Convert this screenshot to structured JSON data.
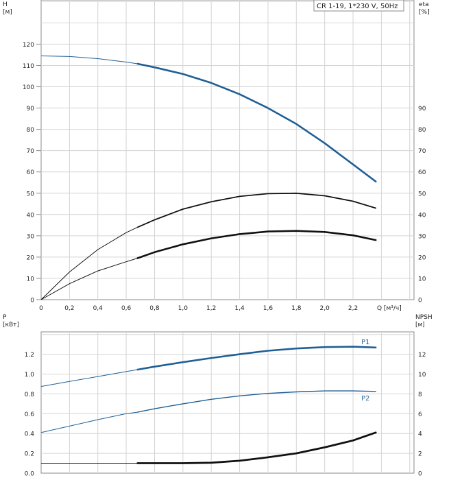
{
  "colors": {
    "blue": "#1f5f96",
    "black": "#111111",
    "grid": "#d4d4d4",
    "frame": "#8a8a8a"
  },
  "chart_data": [
    {
      "type": "line",
      "legend": "CR 1-19, 1*230 V, 50Hz",
      "legend_placement": "top-right",
      "xlabel": "Q [м³/ч]",
      "ylabel_left": "H\n[м]",
      "ylabel_right": "eta\n[%]",
      "xlim": [
        0,
        2.4
      ],
      "ylim_left": [
        0,
        130
      ],
      "ylim_right": [
        0,
        130
      ],
      "grid": true,
      "x_ticks": [
        "0",
        "0,2",
        "0,4",
        "0,6",
        "0,8",
        "1,0",
        "1,2",
        "1,4",
        "1,6",
        "1,8",
        "2,0",
        "2,2"
      ],
      "y_ticks_left": [
        "0",
        "10",
        "20",
        "30",
        "40",
        "50",
        "60",
        "70",
        "80",
        "90",
        "100",
        "110",
        "120"
      ],
      "y_ticks_right": [
        "0",
        "10",
        "20",
        "30",
        "40",
        "50",
        "60",
        "70",
        "80",
        "90"
      ],
      "operating_range": [
        0.68,
        2.36
      ],
      "series": [
        {
          "color": "blue",
          "x": [
            0,
            0.2,
            0.4,
            0.6,
            0.68,
            0.8,
            1.0,
            1.2,
            1.4,
            1.6,
            1.8,
            2.0,
            2.2,
            2.36
          ],
          "y": [
            114.5,
            114.2,
            113.2,
            111.6,
            110.8,
            109.1,
            106.0,
            101.8,
            96.5,
            90.0,
            82.5,
            73.5,
            63.5,
            55.5
          ]
        },
        {
          "color": "black",
          "x": [
            0,
            0.2,
            0.4,
            0.6,
            0.68,
            0.8,
            1.0,
            1.2,
            1.4,
            1.6,
            1.8,
            2.0,
            2.2,
            2.36
          ],
          "y": [
            0,
            13.0,
            23.5,
            31.5,
            34.0,
            37.5,
            42.5,
            46.0,
            48.5,
            49.8,
            50.0,
            48.8,
            46.2,
            43.0
          ]
        },
        {
          "color": "black",
          "x": [
            0,
            0.2,
            0.4,
            0.6,
            0.68,
            0.8,
            1.0,
            1.2,
            1.4,
            1.6,
            1.8,
            2.0,
            2.2,
            2.36
          ],
          "y": [
            0,
            7.5,
            13.5,
            17.8,
            19.5,
            22.3,
            26.0,
            28.8,
            30.8,
            32.0,
            32.3,
            31.8,
            30.2,
            28.0
          ]
        }
      ]
    },
    {
      "type": "line",
      "ylabel_left": "P\n[кВт]",
      "ylabel_right": "NPSH\n[м]",
      "xlim": [
        0,
        2.4
      ],
      "ylim_left": [
        0,
        1.4
      ],
      "ylim_right": [
        0,
        14
      ],
      "grid": true,
      "y_ticks_left": [
        "0.0",
        "0.2",
        "0.4",
        "0.6",
        "0.8",
        "1.0",
        "1.2"
      ],
      "y_ticks_right": [
        "0",
        "2",
        "4",
        "6",
        "8",
        "10",
        "12"
      ],
      "operating_range": [
        0.68,
        2.36
      ],
      "series": [
        {
          "name": "P1",
          "color": "blue",
          "axis": "left",
          "x": [
            0,
            0.2,
            0.4,
            0.6,
            0.68,
            0.8,
            1.0,
            1.2,
            1.4,
            1.6,
            1.8,
            2.0,
            2.2,
            2.36
          ],
          "y": [
            0.875,
            0.925,
            0.975,
            1.025,
            1.045,
            1.075,
            1.12,
            1.162,
            1.2,
            1.235,
            1.258,
            1.272,
            1.276,
            1.268
          ]
        },
        {
          "name": "P2",
          "color": "blue",
          "axis": "left",
          "x": [
            0,
            0.2,
            0.4,
            0.6,
            0.68,
            0.8,
            1.0,
            1.2,
            1.4,
            1.6,
            1.8,
            2.0,
            2.2,
            2.36
          ],
          "y": [
            0.41,
            0.475,
            0.54,
            0.6,
            0.615,
            0.65,
            0.7,
            0.745,
            0.78,
            0.805,
            0.82,
            0.83,
            0.83,
            0.825
          ]
        },
        {
          "color": "black",
          "axis": "right",
          "x": [
            0,
            0.2,
            0.4,
            0.6,
            0.68,
            0.8,
            1.0,
            1.2,
            1.4,
            1.6,
            1.8,
            2.0,
            2.2,
            2.36
          ],
          "y": [
            1.0,
            1.0,
            1.0,
            1.0,
            1.0,
            1.0,
            1.0,
            1.05,
            1.25,
            1.6,
            2.0,
            2.6,
            3.3,
            4.1
          ]
        }
      ]
    }
  ]
}
